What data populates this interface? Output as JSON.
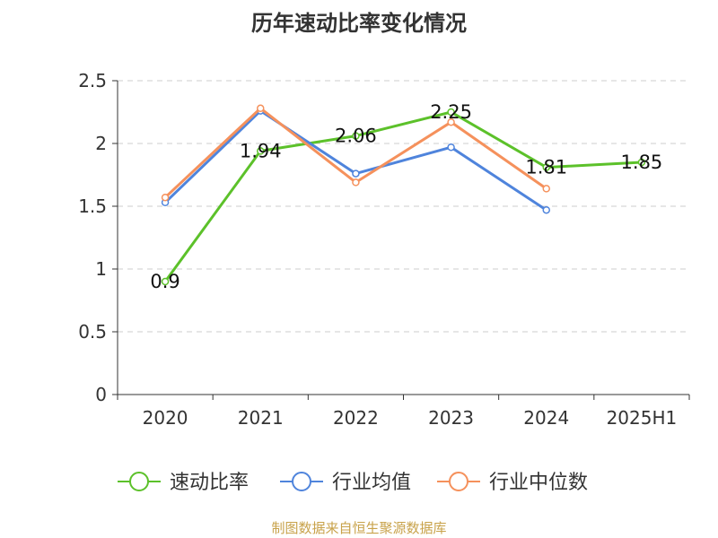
{
  "title": "历年速动比率变化情况",
  "footer": "制图数据来自恒生聚源数据库",
  "chart_data": {
    "type": "line",
    "title": "历年速动比率变化情况",
    "categories": [
      "2020",
      "2021",
      "2022",
      "2023",
      "2024",
      "2025H1"
    ],
    "ylim": [
      0,
      2.5
    ],
    "yticks": [
      0,
      0.5,
      1,
      1.5,
      2,
      2.5
    ],
    "grid": true,
    "legend_position": "bottom",
    "series": [
      {
        "name": "速动比率",
        "color": "#5cc12a",
        "values": [
          0.9,
          1.94,
          2.06,
          2.25,
          1.81,
          1.85
        ],
        "labels": [
          "0.9",
          "1.94",
          "2.06",
          "2.25",
          "1.81",
          "1.85"
        ]
      },
      {
        "name": "行业均值",
        "color": "#4f84dc",
        "values": [
          1.53,
          2.26,
          1.76,
          1.97,
          1.47,
          null
        ]
      },
      {
        "name": "行业中位数",
        "color": "#f5915c",
        "values": [
          1.57,
          2.28,
          1.69,
          2.17,
          1.64,
          null
        ]
      }
    ]
  }
}
